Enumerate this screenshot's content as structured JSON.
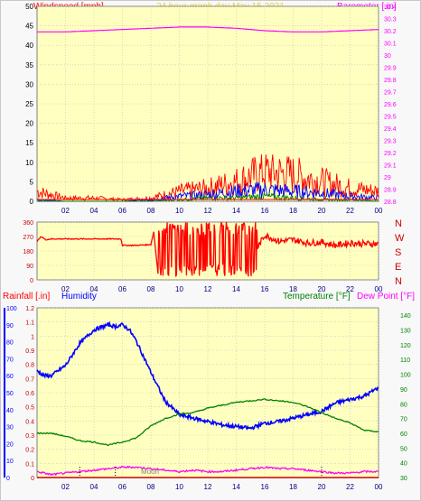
{
  "header": {
    "title": "24 hour graph day   May 15 2021",
    "left_label": "Windspeed [mph]",
    "right_label": "Barometer [.in]"
  },
  "colors": {
    "background": "#f8f8f8",
    "plot_bg": "#ffffc0",
    "grid": "#c0c0c0",
    "red": "#ff0000",
    "blue": "#0000ff",
    "green": "#008000",
    "magenta": "#ff00ff",
    "dark_red": "#cc0000",
    "title_yellow": "#e8d030"
  },
  "chart_data": [
    {
      "type": "line",
      "name": "wind-barometer-panel",
      "x_ticks": [
        "02",
        "04",
        "06",
        "08",
        "10",
        "12",
        "14",
        "16",
        "18",
        "20",
        "22",
        "00"
      ],
      "xlim": [
        0,
        24
      ],
      "y_left": {
        "label": "Windspeed [mph]",
        "ylim": [
          0,
          50
        ],
        "ticks": [
          "0",
          "5",
          "10",
          "15",
          "20",
          "25",
          "30",
          "35",
          "40",
          "45",
          "50"
        ]
      },
      "y_right": {
        "label": "Barometer [.in]",
        "ylim": [
          28.8,
          30.4
        ],
        "ticks": [
          "28.8",
          "28.9",
          "29",
          "29.1",
          "29.2",
          "29.3",
          "29.4",
          "29.5",
          "29.6",
          "29.7",
          "29.8",
          "29.9",
          "30",
          "30.1",
          "30.2",
          "30.3",
          "30.4"
        ]
      },
      "series": [
        {
          "color": "#ff00ff",
          "axis": "right",
          "x": [
            0,
            2,
            4,
            6,
            8,
            10,
            12,
            14,
            16,
            18,
            20,
            22,
            24
          ],
          "values": [
            30.19,
            30.19,
            30.2,
            30.21,
            30.22,
            30.23,
            30.23,
            30.22,
            30.2,
            30.19,
            30.19,
            30.2,
            30.21
          ]
        },
        {
          "color": "#ff0000",
          "axis": "left",
          "x": [
            0,
            2,
            4,
            6,
            8,
            10,
            12,
            14,
            16,
            18,
            20,
            22,
            24
          ],
          "values": [
            3,
            1,
            1,
            0.5,
            1,
            3,
            4,
            6,
            9,
            8,
            6,
            4,
            3
          ]
        },
        {
          "color": "#0000ff",
          "axis": "left",
          "x": [
            0,
            2,
            4,
            6,
            8,
            10,
            12,
            14,
            16,
            18,
            20,
            22,
            24
          ],
          "values": [
            0.5,
            0,
            0,
            0,
            0.5,
            1.5,
            2,
            3,
            3.5,
            3,
            2.5,
            1.5,
            1
          ]
        },
        {
          "color": "#008000",
          "axis": "left",
          "x": [
            0,
            2,
            4,
            6,
            8,
            10,
            12,
            14,
            16,
            18,
            20,
            22,
            24
          ],
          "values": [
            0,
            0,
            0,
            0,
            0,
            0.5,
            1,
            1,
            1.5,
            1,
            0.5,
            0.5,
            0
          ]
        }
      ]
    },
    {
      "type": "line",
      "name": "wind-direction-panel",
      "x_ticks": [
        "02",
        "04",
        "06",
        "08",
        "10",
        "12",
        "14",
        "16",
        "18",
        "20",
        "22",
        "00"
      ],
      "xlim": [
        0,
        24
      ],
      "y_left": {
        "ylim": [
          0,
          360
        ],
        "ticks": [
          "0",
          "90",
          "180",
          "270",
          "360"
        ]
      },
      "y_right": {
        "ticks": [
          "N",
          "W",
          "S",
          "E",
          "N"
        ]
      },
      "series": [
        {
          "color": "#ff0000",
          "x": [
            0,
            0.3,
            0.6,
            1,
            2,
            3,
            4,
            5,
            5.9,
            6,
            7,
            8,
            8.2,
            8.5,
            9,
            9.5,
            10,
            10.5,
            11,
            11.5,
            12,
            12.5,
            13,
            13.5,
            14,
            14.5,
            15,
            15.5,
            16,
            17,
            18,
            19,
            20,
            21,
            22,
            23,
            24
          ],
          "values": [
            240,
            270,
            250,
            255,
            255,
            255,
            255,
            255,
            255,
            215,
            215,
            220,
            300,
            40,
            340,
            30,
            320,
            60,
            330,
            80,
            340,
            90,
            320,
            120,
            300,
            150,
            330,
            200,
            280,
            240,
            250,
            230,
            235,
            215,
            230,
            225,
            225
          ]
        }
      ]
    },
    {
      "type": "line",
      "name": "temp-humidity-rain-panel",
      "x_ticks": [
        "02",
        "04",
        "06",
        "08",
        "10",
        "12",
        "14",
        "16",
        "18",
        "20",
        "22",
        "00"
      ],
      "xlim": [
        0,
        24
      ],
      "y_left": {
        "label": "Rainfall [.in]",
        "ylim": [
          0,
          1.2
        ],
        "ticks": [
          "0",
          "0.1",
          "0.2",
          "0.3",
          "0.4",
          "0.5",
          "0.6",
          "0.7",
          "0.8",
          "0.9",
          "1",
          "1.1",
          "1.2"
        ]
      },
      "y_left_humidity": {
        "label": "Humidity",
        "ticks": [
          "0",
          "10",
          "20",
          "30",
          "40",
          "50",
          "60",
          "70",
          "80",
          "90",
          "100"
        ]
      },
      "y_right": {
        "label": "Temperature [°F]",
        "label2": "Dew Point [°F]",
        "ylim": [
          30,
          145
        ],
        "ticks": [
          "30",
          "40",
          "50",
          "60",
          "70",
          "80",
          "90",
          "100",
          "110",
          "120",
          "130",
          "140"
        ]
      },
      "series": [
        {
          "color": "#0000ff",
          "x": [
            0,
            0.5,
            1,
            2,
            3,
            4,
            5,
            5.5,
            6,
            6.5,
            7,
            8,
            9,
            10,
            11,
            12,
            13,
            14,
            15,
            16,
            17,
            18,
            19,
            20,
            21,
            22,
            23,
            24
          ],
          "values": [
            63,
            60,
            60,
            66,
            79,
            87,
            90,
            89,
            90,
            87,
            80,
            62,
            45,
            37,
            35,
            33,
            31,
            30,
            29,
            32,
            33,
            35,
            37,
            39,
            44,
            46,
            48,
            53
          ]
        },
        {
          "color": "#008000",
          "x": [
            0,
            1,
            2,
            3,
            4,
            5,
            6,
            7,
            8,
            9,
            10,
            11,
            12,
            13,
            14,
            15,
            16,
            17,
            18,
            19,
            20,
            21,
            22,
            23,
            24
          ],
          "values": [
            60,
            60,
            58,
            55,
            54,
            52,
            54,
            57,
            65,
            70,
            73,
            74,
            77,
            79,
            81,
            82,
            83,
            82,
            81,
            78,
            74,
            70,
            67,
            62,
            61
          ]
        },
        {
          "color": "#ff00ff",
          "x": [
            0,
            1,
            2,
            3,
            4,
            5,
            6,
            7,
            8,
            9,
            10,
            11,
            12,
            13,
            14,
            15,
            16,
            17,
            18,
            19,
            20,
            21,
            22,
            23,
            24
          ],
          "values": [
            34,
            32,
            33,
            34,
            35,
            36,
            37,
            37,
            36,
            35,
            34,
            35,
            34,
            34,
            35,
            36,
            37,
            36,
            36,
            35,
            34,
            33,
            33,
            34,
            34
          ]
        },
        {
          "color": "#cc0000",
          "x": [
            0,
            24
          ],
          "values": [
            0,
            0
          ]
        }
      ]
    }
  ],
  "annotations": {
    "moon_label": "Moon"
  }
}
